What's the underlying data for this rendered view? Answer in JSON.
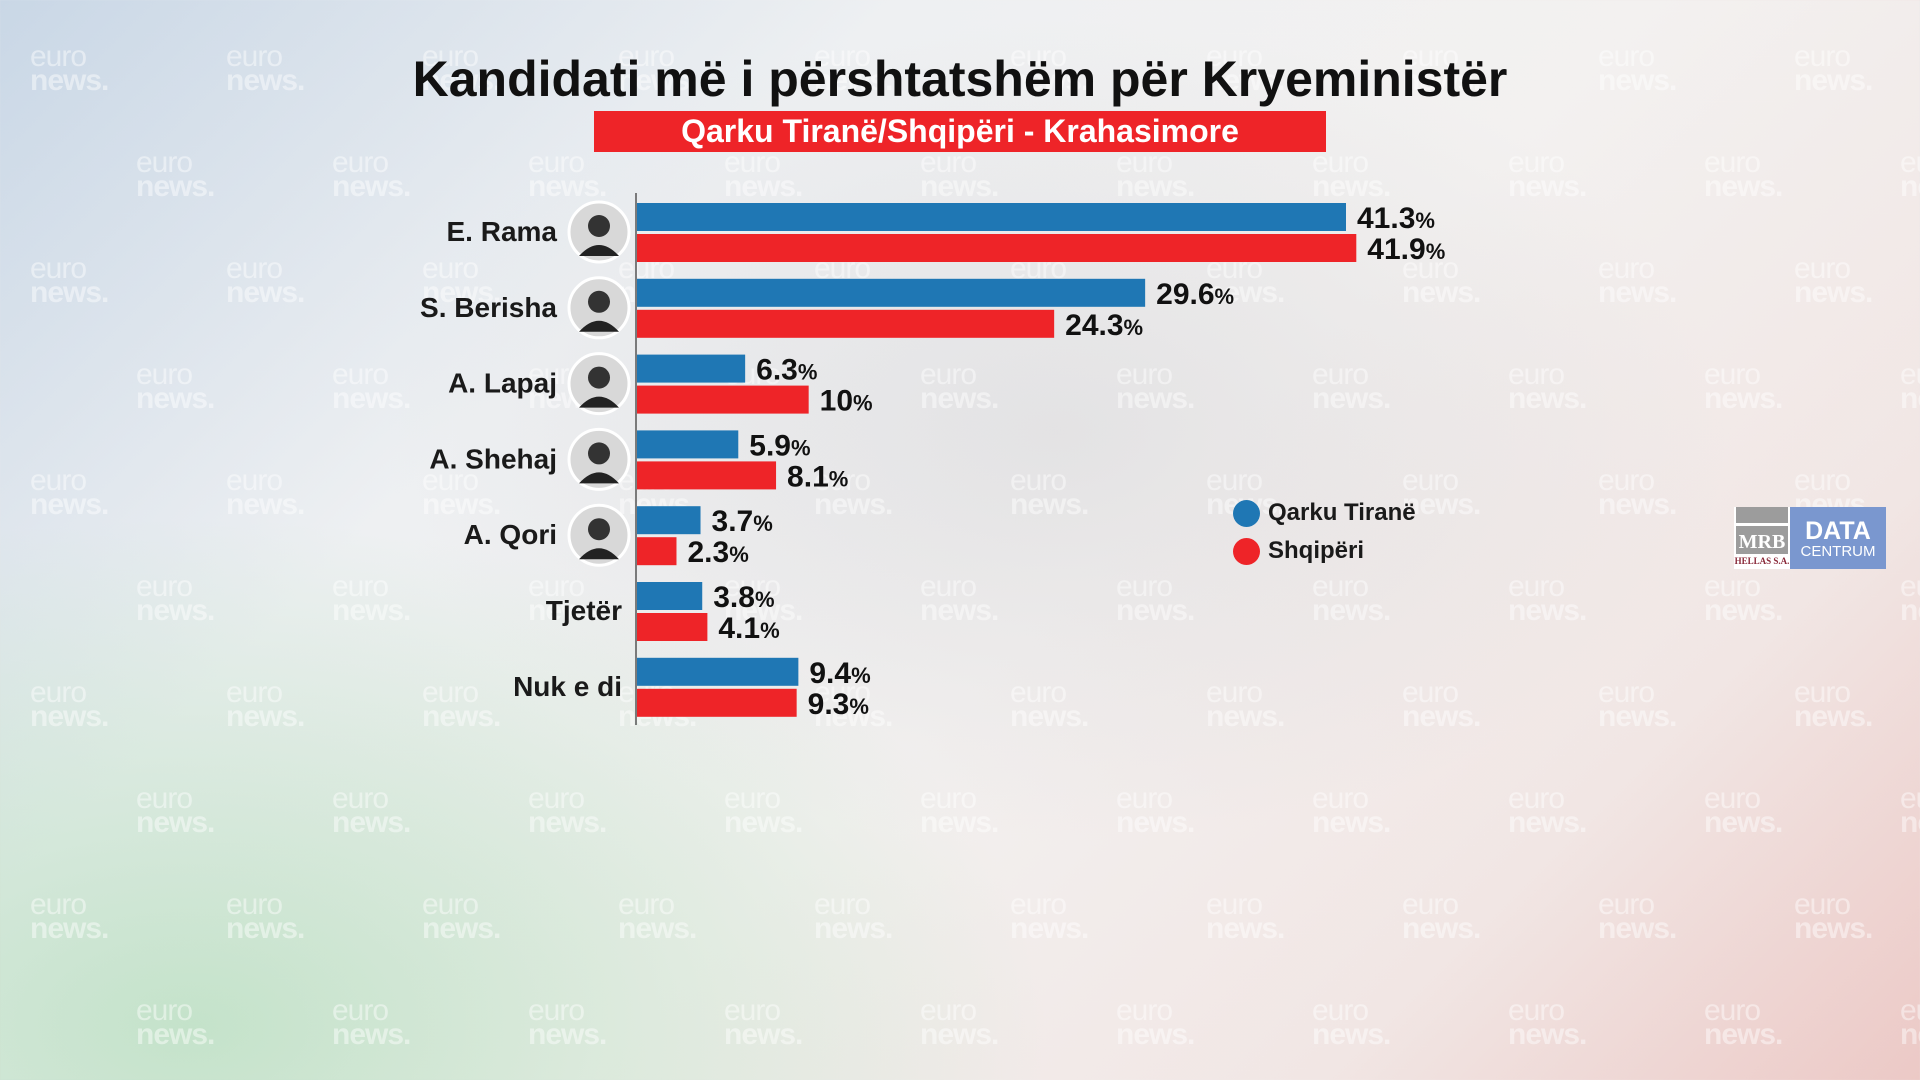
{
  "watermark": {
    "line1": "euro",
    "line2": "news."
  },
  "chart_data": {
    "type": "bar",
    "orientation": "horizontal",
    "title": "Kandidati më i përshtatshëm për Kryeministër",
    "subtitle": "Qarku Tiranë/Shqipëri -  Krahasimore",
    "categories": [
      "E. Rama",
      "S. Berisha",
      "A. Lapaj",
      "A. Shehaj",
      "A. Qori",
      "Tjetër",
      "Nuk e di"
    ],
    "has_photo": [
      true,
      true,
      true,
      true,
      true,
      false,
      false
    ],
    "unit": "%",
    "series": [
      {
        "name": "Qarku Tiranë",
        "color": "#1f77b4",
        "values": [
          41.3,
          29.6,
          6.3,
          5.9,
          3.7,
          3.8,
          9.4
        ],
        "labels": [
          "41.3",
          "29.6",
          "6.3",
          "5.9",
          "3.7",
          "3.8",
          "9.4"
        ]
      },
      {
        "name": "Shqipëri",
        "color": "#ee2428",
        "values": [
          41.9,
          24.3,
          10,
          8.1,
          2.3,
          4.1,
          9.3
        ],
        "labels": [
          "41.9",
          "24.3",
          "10",
          "8.1",
          "2.3",
          "4.1",
          "9.3"
        ]
      }
    ],
    "xlim": [
      0,
      45
    ],
    "grid": false,
    "legend_position": "right"
  },
  "logo": {
    "mrb": "MRB",
    "hellas": "HELLAS S.A.",
    "data": "DATA",
    "centrum": "CENTRUM"
  }
}
